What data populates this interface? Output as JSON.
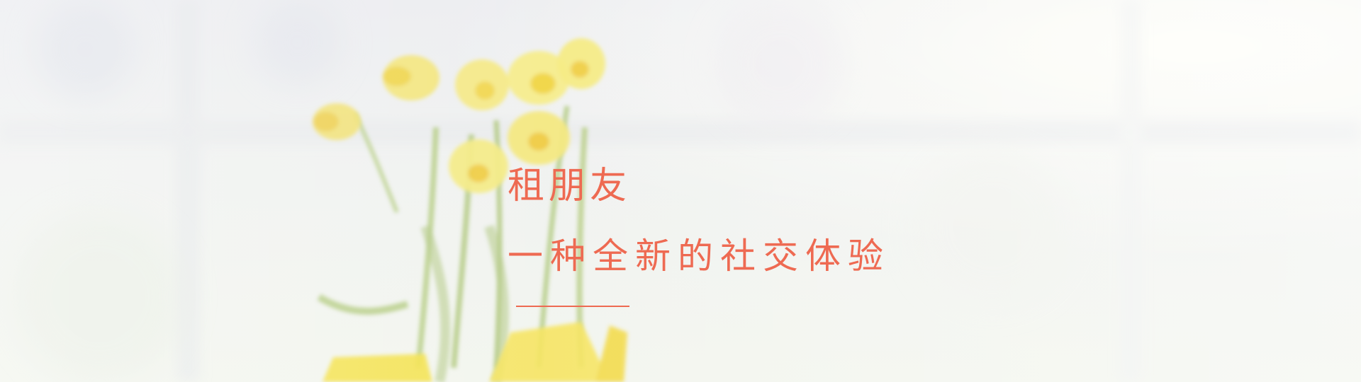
{
  "banner": {
    "title": "租朋友",
    "tagline": "一种全新的社交体验",
    "accent_color": "#ee6a52"
  },
  "background": {
    "subject": "daffodils-by-window-photo",
    "palette": [
      "#f4f4f2",
      "#f3e46a",
      "#f1c81c",
      "#9dbb63"
    ]
  }
}
